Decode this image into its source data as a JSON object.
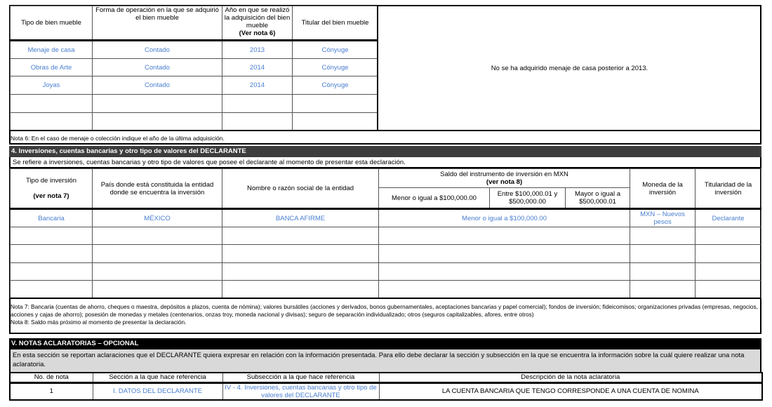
{
  "bienes_muebles": {
    "headers": [
      "Tipo de bien mueble",
      "Forma de operación en la que se adquirió el bien mueble",
      "Año en que se realizó la adquisición del bien mueble",
      "Titular del bien mueble"
    ],
    "header_note": "(Ver nota 6)",
    "rows": [
      [
        "Menaje de casa",
        "Contado",
        "2013",
        "Cónyuge"
      ],
      [
        "Obras de Arte",
        "Contado",
        "2014",
        "Cónyuge"
      ],
      [
        "Joyas",
        "Contado",
        "2014",
        "Cónyuge"
      ]
    ],
    "remark": "No se ha adquirido menaje de casa posterior a 2013.",
    "nota6": "Nota 6: En el caso de menaje o colección indique el año de la última adquisición."
  },
  "inversiones": {
    "title": "4. Inversiones, cuentas bancarias y otro tipo de valores del DECLARANTE",
    "description": "Se refiere a inversiones, cuentas bancarias y otro tipo de valores que posee el declarante al momento de presentar esta declaración.",
    "headers": {
      "tipo": "Tipo de inversión",
      "tipo_note": "(ver nota 7)",
      "pais": "País donde está constituida la entidad donde se encuentra la inversión",
      "nombre": "Nombre o razón social de la entidad",
      "saldo": "Saldo del instrumento de inversión en MXN",
      "saldo_note": "(ver nota 8)",
      "rango1": "Menor o igual a $100,000.00",
      "rango2": "Entre $100,000.01 y $500,000.00",
      "rango3": "Mayor o igual a $500,000.01",
      "moneda": "Moneda de la inversión",
      "titularidad": "Titularidad de la inversión"
    },
    "row": {
      "tipo": "Bancaria",
      "pais": "MÉXICO",
      "nombre": "BANCA AFIRME",
      "saldo": "Menor o igual a $100,000.00",
      "moneda": "MXN – Nuevos pesos",
      "titularidad": "Declarante"
    },
    "nota7": "Nota 7: Bancaria (cuentas de ahorro, cheques o maestra, depósitos a plazos, cuenta de nómina); valores bursátiles (acciones y derivados, bonos gubernamentales, aceptaciones bancarias y papel comercial); fondos de inversión; fideicomisos; organizaciones privadas (empresas, negocios, acciones y cajas de ahorro); posesión de monedas y metales (centenarios, onzas troy, moneda nacional y divisas); seguro de separación individualizado; otros (seguros capitalizables, afores, entre otros)",
    "nota8": "Nota 8: Saldo más próximo al momento de presentar la declaración."
  },
  "notas": {
    "title": "V. NOTAS ACLARATORIAS – OPCIONAL",
    "description": "En esta sección se reportan aclaraciones que el DECLARANTE quiera expresar en relación con la información presentada. Para ello debe declarar la sección y subsección en la que se encuentra la información sobre la cuál quiere realizar una nota aclaratoria.",
    "headers": [
      "No. de nota",
      "Sección a la que hace referencia",
      "Subsección a la que hace referencia",
      "Descripción de la nota aclaratoria"
    ],
    "row": [
      "1",
      "I. DATOS DEL DECLARANTE",
      "IV - 4. Inversiones, cuentas bancarias y otro tipo de valores del DECLARANTE",
      "LA CUENTA BANCARIA QUE TENGO CORRESPONDE A UNA CUENTA DE NOMINA"
    ]
  }
}
